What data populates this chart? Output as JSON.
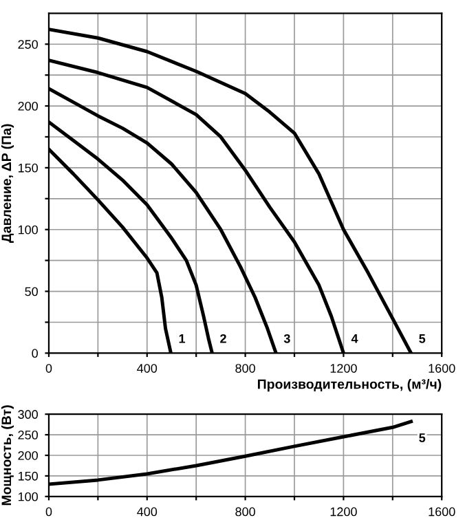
{
  "chart_data": [
    {
      "type": "line",
      "xlabel": "Производительность, (м³/ч)",
      "ylabel": "Давление, ΔP (Па)",
      "xlim": [
        0,
        1600
      ],
      "ylim": [
        0,
        275
      ],
      "xticks": [
        0,
        {
          "value": 200,
          "label": null
        },
        400,
        {
          "value": 600,
          "label": null
        },
        800,
        {
          "value": 1000,
          "label": null
        },
        1200,
        {
          "value": 1400,
          "label": null
        },
        1600
      ],
      "yticks": [
        0,
        {
          "value": 25,
          "label": null
        },
        50,
        {
          "value": 75,
          "label": null
        },
        100,
        {
          "value": 125,
          "label": null
        },
        150,
        {
          "value": 175,
          "label": null
        },
        200,
        {
          "value": 225,
          "label": null
        },
        250
      ],
      "grid": true,
      "series": [
        {
          "name": "1",
          "color": "#000000",
          "x": [
            0,
            100,
            200,
            300,
            400,
            440,
            460,
            475,
            497
          ],
          "values": [
            165,
            145,
            124,
            102,
            77,
            65,
            45,
            20,
            0
          ]
        },
        {
          "name": "2",
          "color": "#000000",
          "x": [
            0,
            100,
            200,
            300,
            400,
            500,
            560,
            600,
            630,
            650,
            665
          ],
          "values": [
            187,
            172,
            157,
            140,
            120,
            93,
            75,
            55,
            30,
            12,
            0
          ]
        },
        {
          "name": "3",
          "color": "#000000",
          "x": [
            0,
            100,
            200,
            300,
            400,
            500,
            600,
            700,
            780,
            840,
            890,
            925
          ],
          "values": [
            214,
            203,
            192,
            182,
            170,
            153,
            130,
            100,
            70,
            45,
            20,
            0
          ]
        },
        {
          "name": "4",
          "color": "#000000",
          "x": [
            0,
            200,
            400,
            600,
            700,
            800,
            900,
            1000,
            1100,
            1150,
            1200
          ],
          "values": [
            237,
            227,
            215,
            193,
            175,
            148,
            118,
            90,
            55,
            30,
            0
          ]
        },
        {
          "name": "5",
          "color": "#000000",
          "x": [
            0,
            200,
            400,
            600,
            800,
            900,
            1000,
            1100,
            1200,
            1300,
            1400,
            1475
          ],
          "values": [
            262,
            255,
            244,
            228,
            210,
            195,
            178,
            145,
            100,
            65,
            28,
            0
          ]
        }
      ]
    },
    {
      "type": "line",
      "ylabel": "Мощность, (Вт)",
      "xlim": [
        0,
        1600
      ],
      "ylim": [
        100,
        300
      ],
      "xticks": [
        0,
        {
          "value": 200,
          "label": null
        },
        400,
        {
          "value": 600,
          "label": null
        },
        800,
        {
          "value": 1000,
          "label": null
        },
        1200,
        {
          "value": 1400,
          "label": null
        },
        1600
      ],
      "yticks": [
        100,
        150,
        200,
        250,
        300
      ],
      "grid": true,
      "series": [
        {
          "name": "5",
          "color": "#000000",
          "x": [
            0,
            200,
            400,
            600,
            800,
            1000,
            1200,
            1400,
            1475
          ],
          "values": [
            130,
            140,
            155,
            175,
            198,
            222,
            245,
            268,
            282
          ]
        }
      ]
    }
  ]
}
